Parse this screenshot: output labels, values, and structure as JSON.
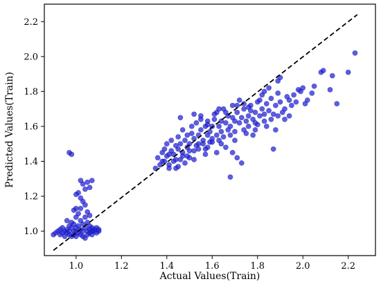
{
  "chart_data": {
    "type": "scatter",
    "xlabel": "Actual Values(Train)",
    "ylabel": "Predicted Values(Train)",
    "xlim": [
      0.86,
      2.32
    ],
    "ylim": [
      0.86,
      2.3
    ],
    "xticks": [
      1.0,
      1.2,
      1.4,
      1.6,
      1.8,
      2.0,
      2.2
    ],
    "yticks": [
      1.0,
      1.2,
      1.4,
      1.6,
      1.8,
      2.0,
      2.2
    ],
    "xtick_labels": [
      "1.0",
      "1.2",
      "1.4",
      "1.6",
      "1.8",
      "2.0",
      "2.2"
    ],
    "ytick_labels": [
      "1.0",
      "1.2",
      "1.4",
      "1.6",
      "1.8",
      "2.0",
      "2.2"
    ],
    "grid": false,
    "point_color": "#1f1fd6",
    "reference_line": {
      "style": "dashed",
      "color": "#000000",
      "x": [
        0.9,
        2.24
      ],
      "y": [
        0.89,
        2.24
      ]
    },
    "series": [
      {
        "points": [
          [
            0.9,
            0.98
          ],
          [
            0.91,
            0.99
          ],
          [
            0.92,
            1.0
          ],
          [
            0.93,
            0.98
          ],
          [
            0.93,
            1.01
          ],
          [
            0.94,
            0.99
          ],
          [
            0.94,
            1.02
          ],
          [
            0.95,
            1.0
          ],
          [
            0.95,
            0.97
          ],
          [
            0.96,
            1.01
          ],
          [
            0.96,
            0.99
          ],
          [
            0.97,
            1.03
          ],
          [
            0.97,
            0.98
          ],
          [
            0.97,
            1.0
          ],
          [
            0.98,
            1.02
          ],
          [
            0.98,
            0.97
          ],
          [
            0.98,
            1.05
          ],
          [
            0.99,
            1.0
          ],
          [
            0.99,
            0.98
          ],
          [
            0.99,
            1.04
          ],
          [
            1.0,
            1.0
          ],
          [
            1.0,
            0.97
          ],
          [
            1.0,
            1.02
          ],
          [
            1.0,
            1.08
          ],
          [
            1.01,
            0.99
          ],
          [
            1.01,
            1.03
          ],
          [
            1.01,
            1.1
          ],
          [
            1.02,
            1.01
          ],
          [
            1.02,
            0.98
          ],
          [
            1.02,
            1.06
          ],
          [
            1.02,
            1.13
          ],
          [
            1.03,
            1.0
          ],
          [
            1.03,
            1.04
          ],
          [
            1.03,
            1.17
          ],
          [
            1.03,
            0.97
          ],
          [
            1.04,
            1.02
          ],
          [
            1.04,
            1.08
          ],
          [
            1.04,
            1.24
          ],
          [
            1.05,
            1.0
          ],
          [
            1.05,
            0.98
          ],
          [
            1.05,
            1.05
          ],
          [
            1.05,
            1.11
          ],
          [
            1.06,
            1.01
          ],
          [
            1.06,
            0.99
          ],
          [
            1.06,
            1.03
          ],
          [
            1.07,
            1.0
          ],
          [
            1.07,
            1.02
          ],
          [
            1.07,
            0.98
          ],
          [
            1.08,
            1.01
          ],
          [
            1.08,
            1.0
          ],
          [
            1.09,
            1.02
          ],
          [
            1.09,
            0.99
          ],
          [
            1.1,
            1.0
          ],
          [
            1.1,
            1.01
          ],
          [
            1.0,
            1.13
          ],
          [
            1.01,
            1.22
          ],
          [
            1.02,
            1.29
          ],
          [
            1.03,
            1.27
          ],
          [
            1.05,
            1.28
          ],
          [
            1.06,
            1.25
          ],
          [
            1.07,
            1.29
          ],
          [
            0.97,
            1.45
          ],
          [
            0.98,
            1.44
          ],
          [
            1.0,
            1.21
          ],
          [
            1.04,
            1.15
          ],
          [
            1.02,
            1.19
          ],
          [
            0.99,
            1.12
          ],
          [
            1.06,
            1.09
          ],
          [
            0.96,
            1.06
          ],
          [
            1.04,
            0.96
          ],
          [
            1.35,
            1.36
          ],
          [
            1.36,
            1.42
          ],
          [
            1.37,
            1.38
          ],
          [
            1.38,
            1.45
          ],
          [
            1.38,
            1.4
          ],
          [
            1.39,
            1.47
          ],
          [
            1.4,
            1.43
          ],
          [
            1.4,
            1.5
          ],
          [
            1.41,
            1.38
          ],
          [
            1.42,
            1.46
          ],
          [
            1.42,
            1.52
          ],
          [
            1.43,
            1.44
          ],
          [
            1.44,
            1.49
          ],
          [
            1.44,
            1.41
          ],
          [
            1.45,
            1.54
          ],
          [
            1.45,
            1.47
          ],
          [
            1.46,
            1.5
          ],
          [
            1.46,
            1.65
          ],
          [
            1.47,
            1.45
          ],
          [
            1.47,
            1.58
          ],
          [
            1.48,
            1.52
          ],
          [
            1.49,
            1.48
          ],
          [
            1.49,
            1.55
          ],
          [
            1.5,
            1.5
          ],
          [
            1.5,
            1.42
          ],
          [
            1.51,
            1.56
          ],
          [
            1.51,
            1.6
          ],
          [
            1.52,
            1.53
          ],
          [
            1.52,
            1.46
          ],
          [
            1.53,
            1.62
          ],
          [
            1.54,
            1.55
          ],
          [
            1.54,
            1.5
          ],
          [
            1.55,
            1.58
          ],
          [
            1.55,
            1.66
          ],
          [
            1.56,
            1.52
          ],
          [
            1.57,
            1.6
          ],
          [
            1.57,
            1.47
          ],
          [
            1.58,
            1.63
          ],
          [
            1.58,
            1.55
          ],
          [
            1.59,
            1.57
          ],
          [
            1.6,
            1.6
          ],
          [
            1.6,
            1.51
          ],
          [
            1.61,
            1.64
          ],
          [
            1.62,
            1.55
          ],
          [
            1.62,
            1.68
          ],
          [
            1.63,
            1.6
          ],
          [
            1.64,
            1.57
          ],
          [
            1.64,
            1.63
          ],
          [
            1.65,
            1.7
          ],
          [
            1.65,
            1.54
          ],
          [
            1.66,
            1.62
          ],
          [
            1.67,
            1.58
          ],
          [
            1.67,
            1.66
          ],
          [
            1.68,
            1.31
          ],
          [
            1.68,
            1.6
          ],
          [
            1.69,
            1.72
          ],
          [
            1.7,
            1.63
          ],
          [
            1.7,
            1.57
          ],
          [
            1.71,
            1.68
          ],
          [
            1.72,
            1.62
          ],
          [
            1.72,
            1.75
          ],
          [
            1.73,
            1.65
          ],
          [
            1.74,
            1.58
          ],
          [
            1.74,
            1.7
          ],
          [
            1.75,
            1.63
          ],
          [
            1.76,
            1.66
          ],
          [
            1.76,
            1.6
          ],
          [
            1.77,
            1.72
          ],
          [
            1.78,
            1.64
          ],
          [
            1.78,
            1.55
          ],
          [
            1.79,
            1.68
          ],
          [
            1.8,
            1.61
          ],
          [
            1.8,
            1.74
          ],
          [
            1.81,
            1.66
          ],
          [
            1.82,
            1.7
          ],
          [
            1.82,
            1.78
          ],
          [
            1.83,
            1.63
          ],
          [
            1.84,
            1.73
          ],
          [
            1.85,
            1.69
          ],
          [
            1.86,
            1.76
          ],
          [
            1.87,
            1.47
          ],
          [
            1.88,
            1.72
          ],
          [
            1.89,
            1.79
          ],
          [
            1.9,
            1.74
          ],
          [
            1.92,
            1.7
          ],
          [
            1.93,
            1.77
          ],
          [
            1.94,
            1.75
          ],
          [
            1.95,
            1.72
          ],
          [
            1.96,
            1.78
          ],
          [
            1.98,
            1.81
          ],
          [
            2.0,
            1.82
          ],
          [
            2.02,
            1.75
          ],
          [
            2.05,
            1.83
          ],
          [
            2.08,
            1.91
          ],
          [
            2.09,
            1.92
          ],
          [
            2.12,
            1.81
          ],
          [
            2.13,
            1.89
          ],
          [
            2.15,
            1.73
          ],
          [
            2.2,
            1.91
          ],
          [
            2.23,
            2.02
          ],
          [
            1.39,
            1.4
          ],
          [
            1.41,
            1.44
          ],
          [
            1.43,
            1.4
          ],
          [
            1.45,
            1.37
          ],
          [
            1.47,
            1.43
          ],
          [
            1.5,
            1.46
          ],
          [
            1.53,
            1.49
          ],
          [
            1.56,
            1.5
          ],
          [
            1.58,
            1.48
          ],
          [
            1.6,
            1.53
          ],
          [
            1.63,
            1.52
          ],
          [
            1.66,
            1.48
          ],
          [
            1.69,
            1.45
          ],
          [
            1.71,
            1.42
          ],
          [
            1.73,
            1.39
          ],
          [
            1.62,
            1.45
          ],
          [
            1.57,
            1.44
          ],
          [
            1.52,
            1.41
          ],
          [
            1.48,
            1.39
          ],
          [
            1.44,
            1.36
          ],
          [
            1.41,
            1.36
          ],
          [
            1.46,
            1.41
          ],
          [
            1.49,
            1.43
          ],
          [
            1.54,
            1.47
          ],
          [
            1.59,
            1.51
          ],
          [
            1.64,
            1.5
          ],
          [
            1.68,
            1.55
          ],
          [
            1.7,
            1.52
          ],
          [
            1.75,
            1.56
          ],
          [
            1.79,
            1.58
          ],
          [
            1.84,
            1.6
          ],
          [
            1.86,
            1.64
          ],
          [
            1.89,
            1.66
          ],
          [
            1.91,
            1.68
          ],
          [
            1.77,
            1.69
          ],
          [
            1.83,
            1.8
          ],
          [
            1.85,
            1.82
          ],
          [
            1.89,
            1.86
          ],
          [
            1.9,
            1.88
          ],
          [
            1.81,
            1.75
          ],
          [
            1.52,
            1.67
          ],
          [
            1.55,
            1.64
          ],
          [
            1.58,
            1.61
          ],
          [
            1.61,
            1.67
          ],
          [
            1.63,
            1.7
          ],
          [
            1.66,
            1.68
          ],
          [
            1.69,
            1.65
          ],
          [
            1.71,
            1.72
          ],
          [
            1.74,
            1.73
          ],
          [
            1.76,
            1.71
          ],
          [
            1.79,
            1.62
          ],
          [
            1.83,
            1.67
          ],
          [
            1.87,
            1.67
          ],
          [
            1.92,
            1.64
          ],
          [
            1.94,
            1.66
          ],
          [
            1.97,
            1.74
          ],
          [
            1.99,
            1.8
          ],
          [
            2.01,
            1.73
          ],
          [
            2.04,
            1.79
          ],
          [
            1.88,
            1.58
          ]
        ]
      }
    ]
  }
}
